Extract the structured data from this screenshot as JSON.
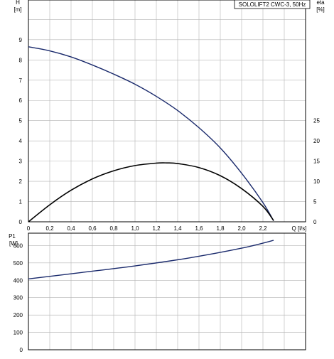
{
  "chart_data": [
    {
      "type": "line",
      "title": "SOLOLIFT2 CWC-3, 50Hz",
      "xlabel": "Q [l/s]",
      "ylabel": "H [m]",
      "y2label": "eta [%]",
      "xlim": [
        0,
        2.6
      ],
      "ylim": [
        0,
        10
      ],
      "y2lim": [
        0,
        50
      ],
      "xticks": [
        "0",
        "0,2",
        "0,4",
        "0,6",
        "0,8",
        "1,0",
        "1,2",
        "1,4",
        "1,6",
        "1,8",
        "2,0",
        "2,2"
      ],
      "yticks": [
        "0",
        "1",
        "2",
        "3",
        "4",
        "5",
        "6",
        "7",
        "8",
        "9"
      ],
      "y2ticks": [
        "0",
        "5",
        "10",
        "15",
        "20",
        "25"
      ],
      "grid": true,
      "series": [
        {
          "axis": "left",
          "color": "#1a2a6c",
          "x": [
            0,
            0.2,
            0.4,
            0.6,
            0.8,
            1.0,
            1.2,
            1.4,
            1.6,
            1.8,
            2.0,
            2.2,
            2.3
          ],
          "y": [
            8.65,
            8.45,
            8.15,
            7.75,
            7.3,
            6.8,
            6.2,
            5.5,
            4.65,
            3.65,
            2.4,
            0.95,
            0.05
          ]
        },
        {
          "axis": "right",
          "color": "#000000",
          "x": [
            0,
            0.2,
            0.4,
            0.6,
            0.8,
            1.0,
            1.2,
            1.3,
            1.4,
            1.6,
            1.8,
            2.0,
            2.2,
            2.3
          ],
          "y": [
            0,
            4.2,
            7.8,
            10.6,
            12.6,
            13.9,
            14.5,
            14.55,
            14.4,
            13.4,
            11.4,
            8.2,
            3.8,
            0.3
          ]
        }
      ]
    },
    {
      "type": "line",
      "title": "",
      "xlabel": "",
      "ylabel": "P1 [W]",
      "xlim": [
        0,
        2.6
      ],
      "ylim": [
        0,
        700
      ],
      "yticks": [
        "0",
        "100",
        "200",
        "300",
        "400",
        "500",
        "600"
      ],
      "grid": true,
      "series": [
        {
          "color": "#1a2a6c",
          "x": [
            0,
            0.5,
            1.0,
            1.5,
            2.0,
            2.3
          ],
          "y": [
            408,
            445,
            483,
            528,
            585,
            630
          ]
        }
      ]
    }
  ],
  "labels": {
    "h_name": "H",
    "h_unit": "[m]",
    "eta_name": "eta",
    "eta_unit": "[%]",
    "q_axis": "Q [l/s]",
    "p_name": "P1",
    "p_unit": "[W]"
  }
}
